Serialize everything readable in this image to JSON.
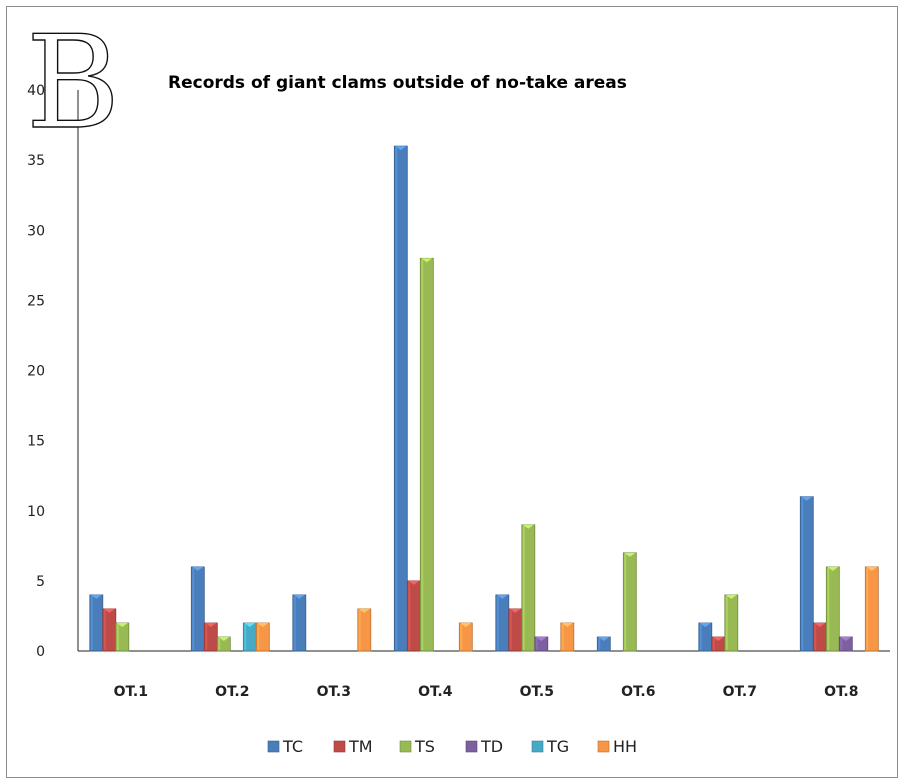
{
  "panel_label": "B",
  "chart_data": {
    "type": "bar",
    "title": "Records of giant clams outside of no-take areas",
    "xlabel": "",
    "ylabel": "",
    "ylim": [
      0,
      40
    ],
    "yticks": [
      "0",
      "5",
      "10",
      "15",
      "20",
      "25",
      "30",
      "35",
      "40"
    ],
    "categories": [
      "OT.1",
      "OT.2",
      "OT.3",
      "OT.4",
      "OT.5",
      "OT.6",
      "OT.7",
      "OT.8"
    ],
    "series": [
      {
        "name": "TC",
        "color": "#4a7ebb",
        "values": [
          4,
          6,
          4,
          36,
          4,
          1,
          2,
          11
        ]
      },
      {
        "name": "TM",
        "color": "#be4b48",
        "values": [
          3,
          2,
          0,
          5,
          3,
          0,
          1,
          2
        ]
      },
      {
        "name": "TS",
        "color": "#98b954",
        "values": [
          2,
          1,
          0,
          28,
          9,
          7,
          4,
          6
        ]
      },
      {
        "name": "TD",
        "color": "#7d60a0",
        "values": [
          0,
          0,
          0,
          0,
          1,
          0,
          0,
          1
        ]
      },
      {
        "name": "TG",
        "color": "#46aac5",
        "values": [
          0,
          2,
          0,
          0,
          0,
          0,
          0,
          0
        ]
      },
      {
        "name": "HH",
        "color": "#f79646",
        "values": [
          0,
          2,
          3,
          2,
          2,
          0,
          0,
          6
        ]
      }
    ],
    "grid": false,
    "legend_position": "bottom"
  }
}
